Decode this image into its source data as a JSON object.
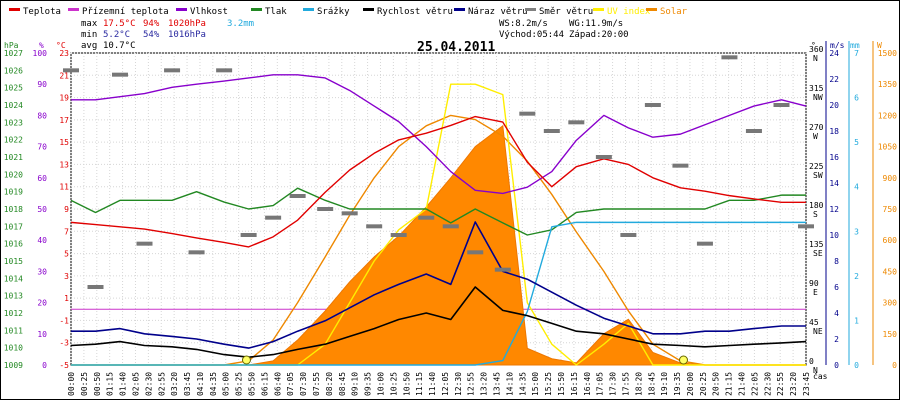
{
  "chart_data": {
    "type": "line",
    "title": "25.04.2011",
    "legend": [
      {
        "label": "Teplota",
        "color": "#e00000"
      },
      {
        "label": "Přízemní teplota",
        "color": "#cc33cc"
      },
      {
        "label": "Vlhkost",
        "color": "#8800cc"
      },
      {
        "label": "Tlak",
        "color": "#228822"
      },
      {
        "label": "Srážky",
        "color": "#22aadd"
      },
      {
        "label": "Rychlost větru",
        "color": "#000000"
      },
      {
        "label": "Náraz větru",
        "color": "#00008b"
      },
      {
        "label": "Směr větru",
        "color": "#808080"
      },
      {
        "label": "UV index",
        "color": "#ffee00"
      },
      {
        "label": "Solar",
        "color": "#ee8800"
      }
    ],
    "stats": {
      "max_label": "max",
      "max_temp": "17.5°C",
      "max_hum": "94%",
      "max_press": "1020hPa",
      "rain": "3.2mm",
      "min_label": "min",
      "min_temp": "5.2°C",
      "min_hum": "54%",
      "min_press": "1016hPa",
      "avg_label": "avg",
      "avg_temp": "10.7°C",
      "ws": "WS:8.2m/s",
      "wg": "WG:11.9m/s",
      "sunrise": "Východ:05:44",
      "sunset": "Západ:20:00"
    },
    "axis_units": {
      "hpa": "hPa",
      "pct": "%",
      "degc": "°C",
      "deg": "°",
      "ms": "m/s",
      "mm": "mm",
      "w": "W",
      "cas": "čas"
    },
    "axes": {
      "pressure_hpa": {
        "range": [
          1009,
          1027
        ],
        "ticks": [
          "1009",
          "1010",
          "1011",
          "1012",
          "1013",
          "1014",
          "1015",
          "1016",
          "1017",
          "1018",
          "1019",
          "1020",
          "1021",
          "1022",
          "1023",
          "1024",
          "1025",
          "1026",
          "1027"
        ]
      },
      "humidity_pct": {
        "range": [
          0,
          100
        ],
        "ticks": [
          "0",
          "10",
          "20",
          "30",
          "40",
          "50",
          "60",
          "70",
          "80",
          "90",
          "100"
        ]
      },
      "temperature_c": {
        "range": [
          -5,
          23
        ],
        "ticks": [
          "-5",
          "-3",
          "-1",
          "1",
          "3",
          "5",
          "7",
          "9",
          "11",
          "13",
          "15",
          "17",
          "19",
          "21",
          "23"
        ]
      },
      "direction_deg": {
        "range": [
          0,
          360
        ],
        "ticks": [
          "0",
          "45",
          "90",
          "135",
          "180",
          "225",
          "270",
          "315",
          "360"
        ],
        "compass": [
          "N",
          "NE",
          "E",
          "SE",
          "S",
          "SW",
          "W",
          "NW",
          "N"
        ]
      },
      "wind_ms": {
        "range": [
          0,
          24
        ],
        "ticks": [
          "0",
          "2",
          "4",
          "6",
          "8",
          "10",
          "12",
          "14",
          "16",
          "18",
          "20",
          "22",
          "24"
        ]
      },
      "rain_mm": {
        "range": [
          0,
          7
        ],
        "ticks": [
          "0",
          "1",
          "2",
          "3",
          "4",
          "5",
          "6",
          "7"
        ]
      },
      "solar_w": {
        "range": [
          0,
          1500
        ],
        "ticks": [
          "0",
          "150",
          "300",
          "450",
          "600",
          "750",
          "900",
          "1050",
          "1200",
          "1350",
          "1500"
        ]
      }
    },
    "x_ticks": [
      "00:00",
      "00:25",
      "00:50",
      "01:15",
      "01:40",
      "02:05",
      "02:30",
      "02:55",
      "03:20",
      "03:45",
      "04:10",
      "04:35",
      "05:00",
      "05:25",
      "05:50",
      "06:15",
      "06:40",
      "07:05",
      "07:30",
      "07:55",
      "08:20",
      "08:45",
      "09:10",
      "09:35",
      "10:00",
      "10:25",
      "10:50",
      "11:15",
      "11:40",
      "12:05",
      "12:30",
      "12:55",
      "13:20",
      "13:45",
      "14:10",
      "14:35",
      "15:00",
      "15:25",
      "15:50",
      "16:15",
      "16:40",
      "17:05",
      "17:30",
      "17:55",
      "18:20",
      "18:45",
      "19:10",
      "19:35",
      "20:00",
      "20:25",
      "20:50",
      "21:15",
      "21:40",
      "22:05",
      "22:30",
      "22:55",
      "23:20",
      "23:45"
    ],
    "x_hours": [
      0,
      1,
      2,
      3,
      4,
      5,
      6,
      7,
      8,
      9,
      10,
      11,
      12,
      13,
      14,
      15,
      16,
      17,
      18,
      19,
      20,
      21,
      22,
      23,
      24
    ],
    "series": {
      "teplota_c": [
        7.8,
        7.6,
        7.4,
        7.2,
        6.8,
        6.4,
        6.0,
        5.6,
        6.5,
        8.0,
        10.5,
        12.5,
        14.0,
        15.2,
        15.8,
        16.5,
        17.3,
        16.8,
        13.2,
        11.0,
        12.8,
        13.5,
        13.0,
        11.8,
        10.9,
        10.6,
        10.2,
        9.9,
        9.6,
        9.6
      ],
      "vlhkost_pct": [
        85,
        85,
        86,
        87,
        89,
        90,
        91,
        92,
        93,
        93,
        92,
        88,
        83,
        78,
        70,
        62,
        56,
        55,
        57,
        62,
        72,
        80,
        76,
        73,
        74,
        77,
        80,
        83,
        85,
        83
      ],
      "tlak_hpa": [
        1018.5,
        1017.8,
        1018.5,
        1018.5,
        1018.5,
        1019.0,
        1018.4,
        1018.0,
        1018.2,
        1019.2,
        1018.5,
        1018.0,
        1018.0,
        1018.0,
        1018.0,
        1017.2,
        1018.0,
        1017.2,
        1016.5,
        1016.8,
        1017.8,
        1018.0,
        1018.0,
        1018.0,
        1018.0,
        1018.0,
        1018.5,
        1018.5,
        1018.8,
        1018.8
      ],
      "rychlost_vetru_ms": [
        1.5,
        1.6,
        1.8,
        1.5,
        1.4,
        1.2,
        0.8,
        0.6,
        0.8,
        1.2,
        1.6,
        2.2,
        2.8,
        3.5,
        4.0,
        3.5,
        6.0,
        4.2,
        3.8,
        3.2,
        2.6,
        2.4,
        2.0,
        1.6,
        1.5,
        1.4,
        1.5,
        1.6,
        1.7,
        1.8
      ],
      "naraz_vetru_ms": [
        2.6,
        2.6,
        2.8,
        2.4,
        2.2,
        2.0,
        1.6,
        1.3,
        1.8,
        2.6,
        3.4,
        4.4,
        5.4,
        6.2,
        7.0,
        6.2,
        11.0,
        7.2,
        6.6,
        5.6,
        4.6,
        3.6,
        3.0,
        2.4,
        2.4,
        2.6,
        2.6,
        2.8,
        3.0,
        3.0
      ],
      "srazky_mm": [
        0,
        0,
        0,
        0,
        0,
        0,
        0,
        0,
        0,
        0,
        0,
        0,
        0,
        0,
        0,
        0,
        0,
        0.1,
        1.2,
        3.1,
        3.2,
        3.2,
        3.2,
        3.2,
        3.2,
        3.2,
        3.2,
        3.2,
        3.2,
        3.2
      ],
      "solar_w": [
        0,
        0,
        0,
        0,
        0,
        0,
        0,
        0,
        20,
        120,
        260,
        400,
        520,
        620,
        760,
        900,
        1050,
        1150,
        80,
        30,
        10,
        150,
        220,
        60,
        10,
        0,
        0,
        0,
        0,
        0
      ],
      "solar_theoretical_w": [
        0,
        0,
        0,
        0,
        0,
        0,
        0,
        20,
        120,
        300,
        520,
        720,
        900,
        1050,
        1150,
        1200,
        1180,
        1100,
        980,
        820,
        640,
        450,
        260,
        100,
        20,
        0,
        0,
        0,
        0,
        0
      ],
      "uv_index_on_solar_scale_w": [
        0,
        0,
        0,
        0,
        0,
        0,
        0,
        0,
        0,
        0,
        100,
        300,
        500,
        650,
        750,
        1350,
        1350,
        1300,
        300,
        100,
        0,
        100,
        200,
        0,
        0,
        0,
        0,
        0,
        0,
        0
      ],
      "smer_vetru_deg": [
        340,
        90,
        335,
        140,
        340,
        130,
        340,
        150,
        170,
        195,
        180,
        175,
        160,
        150,
        170,
        160,
        130,
        110,
        290,
        270,
        280,
        240,
        150,
        300,
        230,
        140,
        355,
        270,
        300,
        160
      ]
    },
    "series_hours": [
      0,
      0.8,
      1.6,
      2.4,
      3.3,
      4.1,
      5.0,
      5.8,
      6.6,
      7.4,
      8.3,
      9.1,
      9.9,
      10.7,
      11.6,
      12.4,
      13.2,
      14.1,
      14.9,
      15.7,
      16.5,
      17.4,
      18.2,
      19.0,
      19.9,
      20.7,
      21.5,
      22.3,
      23.2,
      24.0
    ]
  }
}
